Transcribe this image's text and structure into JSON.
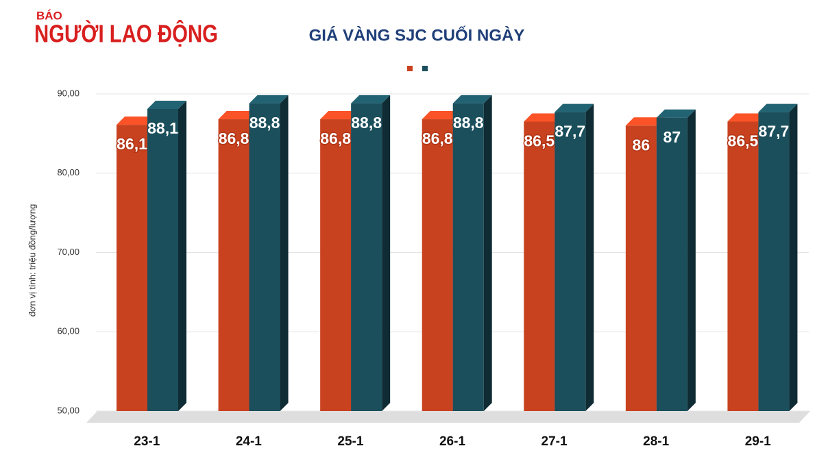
{
  "logo": {
    "small": "BÁO",
    "main": "NGƯỜI LAO ĐỘNG"
  },
  "chart_data": {
    "type": "bar3d",
    "title": "GIÁ VÀNG SJC CUỐI NGÀY",
    "y_label": "đơn vị tính: triệu đồng/lượng",
    "categories": [
      "23-1",
      "24-1",
      "25-1",
      "26-1",
      "27-1",
      "28-1",
      "29-1"
    ],
    "series": [
      {
        "color": "#c9421f",
        "values": [
          86.1,
          86.8,
          86.8,
          86.8,
          86.5,
          86,
          86.5
        ],
        "value_labels": [
          "86,1",
          "86,8",
          "86,8",
          "86,8",
          "86,5",
          "86",
          "86,5"
        ]
      },
      {
        "color": "#1b4f5c",
        "values": [
          88.1,
          88.8,
          88.8,
          88.8,
          87.7,
          87,
          87.7
        ],
        "value_labels": [
          "88,1",
          "88,8",
          "88,8",
          "88,8",
          "87,7",
          "87",
          "87,7"
        ]
      }
    ],
    "ylim": [
      50,
      90
    ],
    "yticks": [
      {
        "value": 50,
        "label": "50,00"
      },
      {
        "value": 60,
        "label": "60,00"
      },
      {
        "value": 70,
        "label": "70,00"
      },
      {
        "value": 80,
        "label": "80,00"
      },
      {
        "value": 90,
        "label": "90,00"
      }
    ],
    "grid": true
  }
}
